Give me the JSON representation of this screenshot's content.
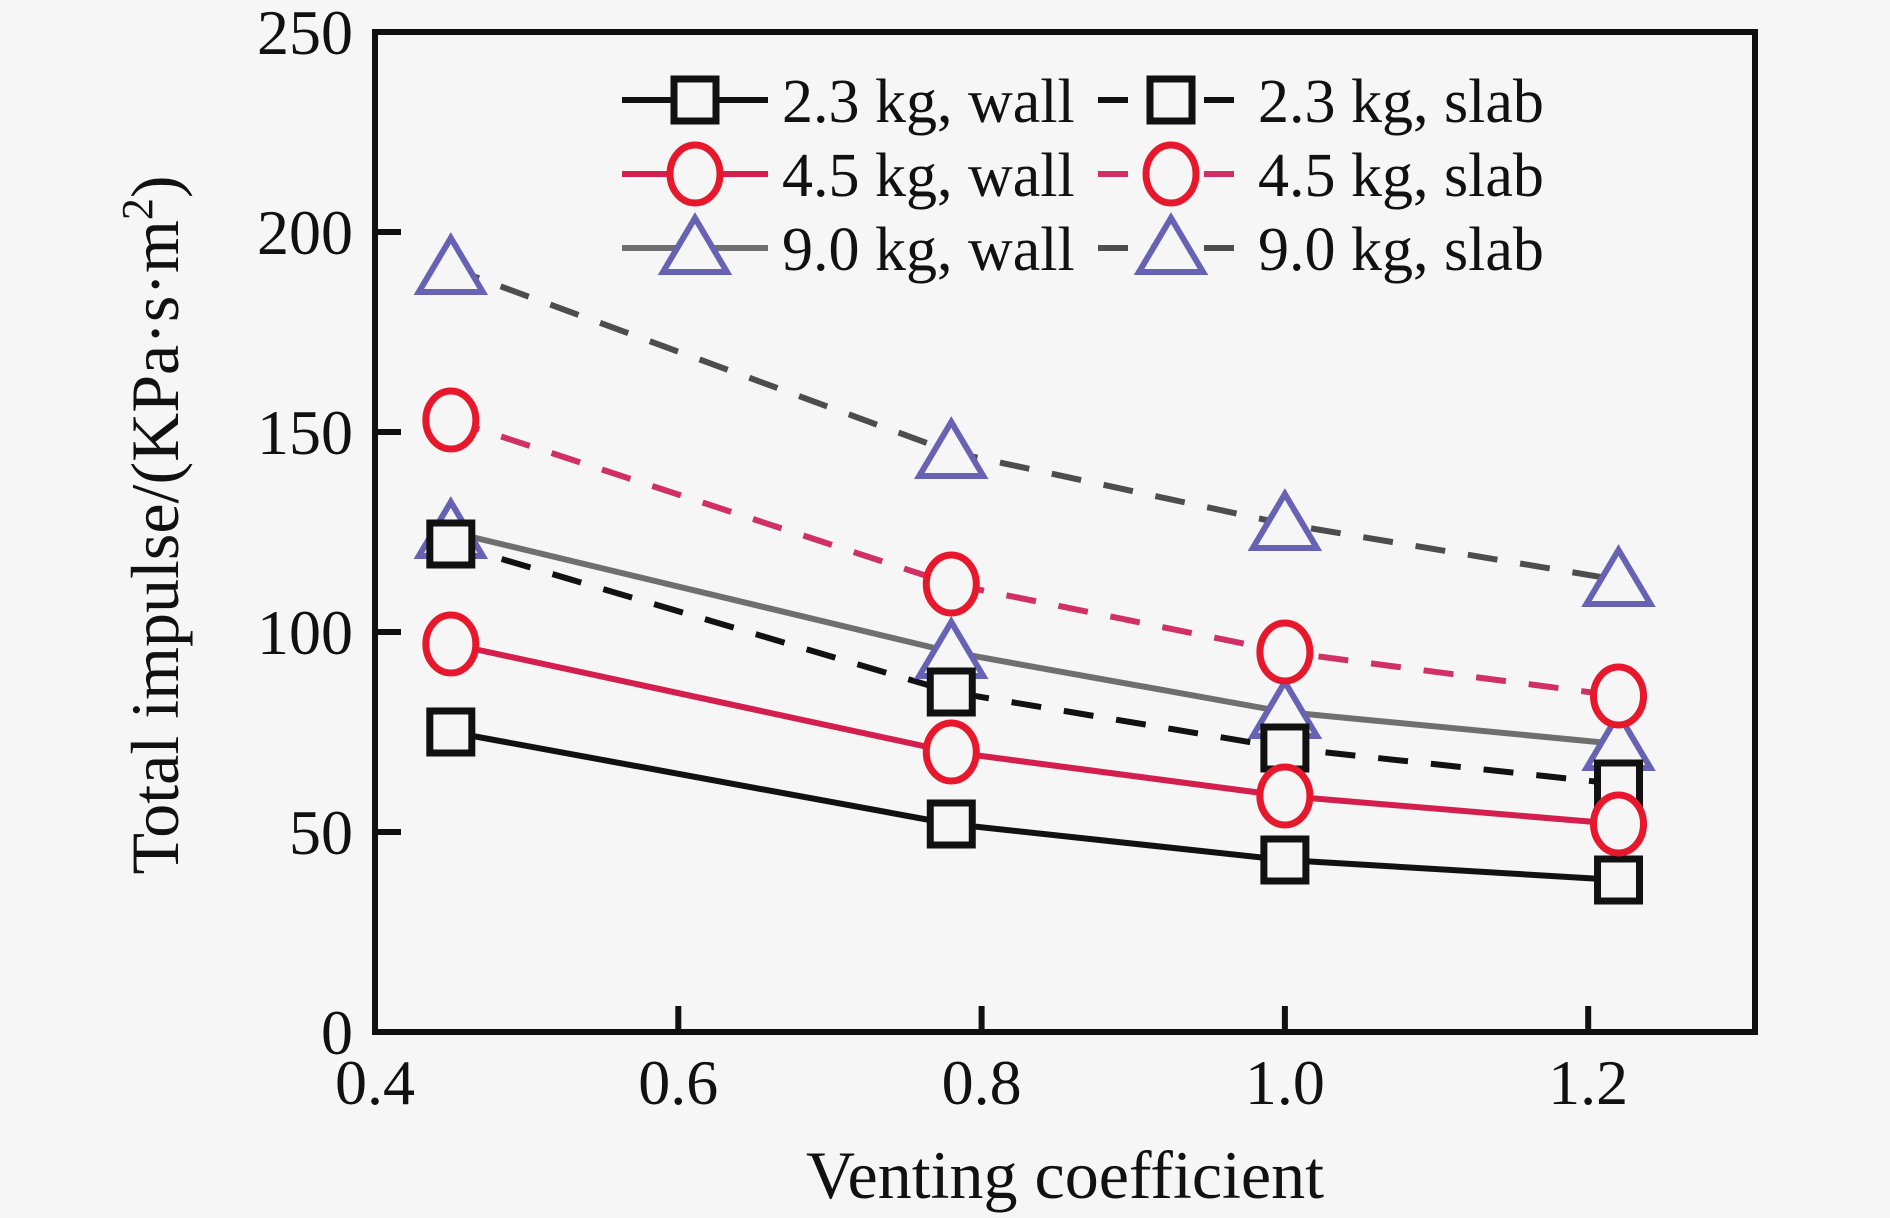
{
  "figure": {
    "background": "#f6f6f6",
    "frame_color": "#111111"
  },
  "chart_data": {
    "type": "line",
    "title": "",
    "xlabel": "Venting coefficient",
    "ylabel": "Total impulse/(KPa·s·m²)",
    "xlim": [
      0.4,
      1.31
    ],
    "ylim": [
      0,
      250
    ],
    "x_ticks": [
      0.6,
      0.8,
      1.0,
      1.2
    ],
    "x_tick_labels": [
      "0.4",
      "0.6",
      "0.8",
      "1.0",
      "1.2"
    ],
    "x_tick_label_values": [
      0.4,
      0.6,
      0.8,
      1.0,
      1.2
    ],
    "y_ticks": [
      50,
      100,
      150,
      200
    ],
    "y_tick_labels": [
      "0",
      "50",
      "100",
      "150",
      "200",
      "250"
    ],
    "y_tick_label_values": [
      0,
      50,
      100,
      150,
      200,
      250
    ],
    "grid": false,
    "legend_position": "top-center-inside",
    "x": [
      0.45,
      0.78,
      1.0,
      1.22
    ],
    "series": [
      {
        "name": "2.3 kg, wall",
        "marker": "square",
        "line_style": "solid",
        "marker_color": "#111111",
        "line_color": "#111111",
        "values": [
          75,
          52,
          43,
          38
        ]
      },
      {
        "name": "4.5 kg, wall",
        "marker": "circle",
        "line_style": "solid",
        "marker_color": "#e8182c",
        "line_color": "#d41e4e",
        "values": [
          97,
          70,
          59,
          52
        ]
      },
      {
        "name": "9.0 kg, wall",
        "marker": "triangle",
        "line_style": "solid",
        "marker_color": "#6862b4",
        "line_color": "#6f6f6f",
        "values": [
          125,
          95,
          80,
          72
        ]
      },
      {
        "name": "2.3 kg, slab",
        "marker": "square",
        "line_style": "dashed",
        "marker_color": "#111111",
        "line_color": "#111111",
        "values": [
          122,
          85,
          71,
          62
        ]
      },
      {
        "name": "4.5 kg, slab",
        "marker": "circle",
        "line_style": "dashed",
        "marker_color": "#e8182c",
        "line_color": "#d13066",
        "values": [
          153,
          112,
          95,
          84
        ]
      },
      {
        "name": "9.0 kg, slab",
        "marker": "triangle",
        "line_style": "dashed",
        "marker_color": "#6862b4",
        "line_color": "#4d4d4d",
        "values": [
          191,
          145,
          127,
          113
        ]
      }
    ]
  }
}
